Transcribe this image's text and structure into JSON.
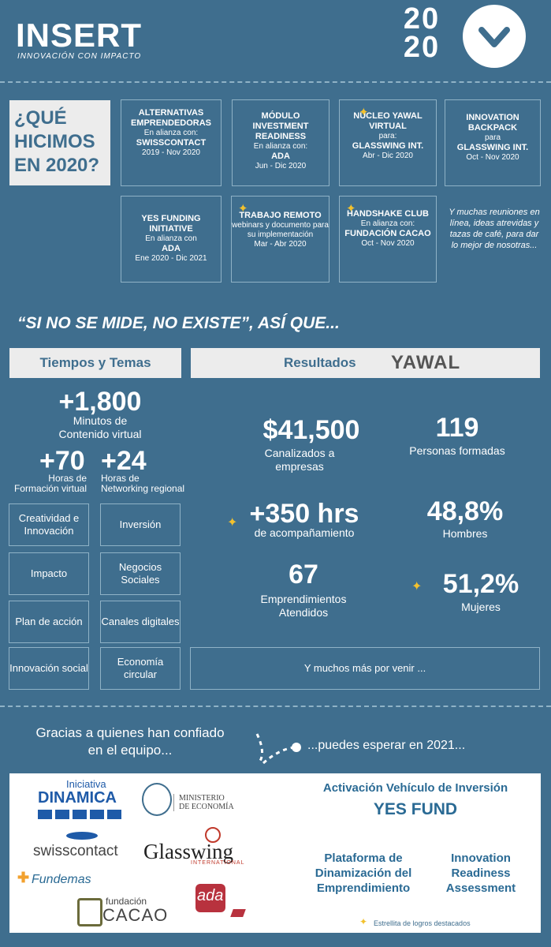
{
  "header": {
    "logo": "INSERT",
    "logo_sub": "INNOVACIÓN CON IMPACTO",
    "year_top": "20",
    "year_bottom": "20"
  },
  "question": {
    "l1": "¿QUÉ",
    "l2": "HICIMOS",
    "l3": "EN 2020?"
  },
  "cards": [
    {
      "title": "ALTERNATIVAS EMPRENDEDORAS",
      "sub": "En alianza con:",
      "partner": "SWISSCONTACT",
      "date": "2019 - Nov 2020"
    },
    {
      "title": "MÓDULO INVESTMENT READINESS",
      "sub": "En alianza con:",
      "partner": "ADA",
      "date": "Jun - Dic  2020"
    },
    {
      "title": "NÚCLEO YAWAL VIRTUAL",
      "sub": "para:",
      "partner": "GLASSWING INT.",
      "date": "Abr - Dic 2020"
    },
    {
      "title": "INNOVATION BACKPACK",
      "sub": "para",
      "partner": "GLASSWING INT.",
      "date": "Oct - Nov 2020"
    },
    {
      "title": "YES FUNDING INITIATIVE",
      "sub": "En alianza con",
      "partner": "ADA",
      "date": "Ene 2020 - Dic 2021"
    },
    {
      "title": "TRABAJO REMOTO",
      "sub": "webinars y documento para su implementación",
      "partner": "",
      "date": "Mar - Abr 2020"
    },
    {
      "title": "HANDSHAKE CLUB",
      "sub": "En alianza con:",
      "partner": "FUNDACIÓN CACAO",
      "date": "Oct - Nov 2020"
    }
  ],
  "note": "Y muchas reuniones en línea, ideas atrevidas y tazas de café, para dar lo mejor de nosotras...",
  "slogan": "“SI NO SE MIDE, NO EXISTE”, ASÍ QUE...",
  "tabs": {
    "left": "Tiempos y Temas",
    "right": "Resultados",
    "yawal": "YAWAL"
  },
  "time": {
    "minutes": "+1,800",
    "minutes_l": "Minutos de\nContenido virtual",
    "hours70": "+70",
    "hours70_l": "Horas de\nFormación virtual",
    "hours24": "+24",
    "hours24_l": "Horas de\nNetworking regional"
  },
  "topics": [
    "Creatividad e Innovación",
    "Inversión",
    "Impacto",
    "Negocios Sociales",
    "Plan de acción",
    "Canales digitales",
    "Innovación social",
    "Economía circular"
  ],
  "results": {
    "money": "$41,500",
    "money_l": "Canalizados a\nempresas",
    "people": "119",
    "people_l": "Personas formadas",
    "hrs": "+350 hrs",
    "hrs_l": "de acompañamiento",
    "men": "48,8%",
    "men_l": "Hombres",
    "startups": "67",
    "startups_l": "Emprendimientos\nAtendidos",
    "women": "51,2%",
    "women_l": "Mujeres",
    "more": "Y muchos más por venir ..."
  },
  "thanks": "Gracias a quienes han confiado\nen el equipo...",
  "expect": "...puedes esperar en 2021...",
  "partners": {
    "dinamica_top": "Iniciativa",
    "dinamica": "DINAMICA",
    "ministerio": "MINISTERIO\nDE ECONOMÍA",
    "swiss": "swisscontact",
    "glasswing": "Glasswing",
    "glasswing_sub": "INTERNATIONAL",
    "fundemas": "Fundemas",
    "cacao_top": "fundación",
    "cacao": "CACAO",
    "ada": "ada"
  },
  "plans": {
    "p1": "Activación Vehículo de Inversión",
    "p1b": "YES FUND",
    "p2": "Plataforma de Dinamización del Emprendimiento",
    "p3": "Innovation Readiness Assessment",
    "legend": "Estrellita de logros destacados"
  }
}
